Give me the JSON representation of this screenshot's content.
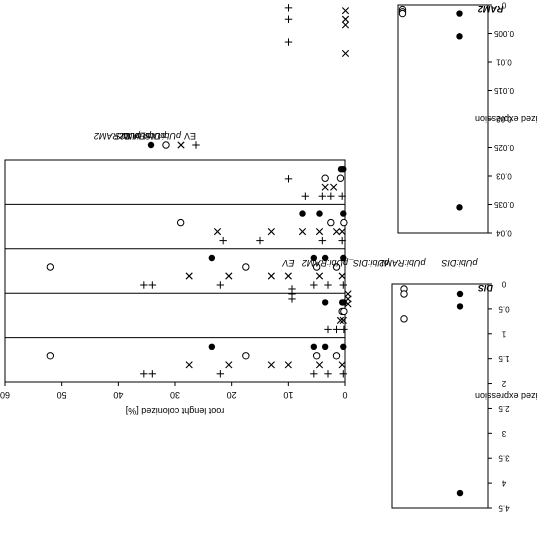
{
  "chart_data": [
    {
      "panel": "left",
      "type": "scatter",
      "ylabel": "root lenght colonized [%]",
      "ylim": [
        0,
        60
      ],
      "yticks": [
        0,
        10,
        20,
        30,
        40,
        50,
        60
      ],
      "grid": false,
      "legend_position": "above panels (rotated)",
      "series": [
        {
          "name": "pUbi:DIS",
          "marker": "filled-circle",
          "groups": [
            [
              0.3,
              3.5,
              5.5,
              23.5
            ],
            [
              0.5,
              3.5,
              0.2
            ],
            [
              0.3,
              3.5,
              5.5,
              23.5
            ],
            [
              0.3,
              4.5,
              7.5
            ],
            [
              0.3,
              0.7
            ]
          ]
        },
        {
          "name": "pUbi:RAM2",
          "marker": "open-circle",
          "groups": [
            [
              1.5,
              5.0,
              17.5,
              52.0
            ],
            [
              0.5,
              0.2
            ],
            [
              1.5,
              5.0,
              17.5,
              52.0
            ],
            [
              0.2,
              2.5,
              29.0
            ],
            [
              0.8,
              3.5
            ]
          ]
        },
        {
          "name": "pUbi:DIS_pUbi:RAM2",
          "marker": "x",
          "groups": [
            [
              0.5,
              4.5,
              10.0,
              13.0,
              20.5,
              27.5
            ],
            [
              0.3,
              0.8
            ],
            [
              0.5,
              4.5,
              10.0,
              13.0,
              20.5,
              27.5
            ],
            [
              0.5,
              1.5,
              4.5,
              7.5,
              13.0,
              22.5
            ],
            [
              2.0,
              3.5
            ]
          ]
        },
        {
          "name": "EV",
          "marker": "plus",
          "groups": [
            [
              0.3,
              3.0,
              5.5,
              22.0,
              34.0,
              35.5
            ],
            [
              0.2,
              1.5,
              3.0
            ],
            [
              0.3,
              3.0,
              5.5,
              22.0,
              34.0,
              35.5
            ],
            [
              0.5,
              4.0,
              15.0,
              21.5
            ],
            [
              0.5,
              2.5,
              4.0,
              7.0
            ]
          ]
        }
      ]
    },
    {
      "panel": "top-right",
      "type": "scatter",
      "title": "RAM2",
      "ylabel": "normalized expression",
      "ylim": [
        0,
        0.04
      ],
      "yticks": [
        0,
        0.005,
        0.01,
        0.015,
        0.02,
        0.025,
        0.03,
        0.035,
        0.04
      ],
      "categories": [
        "pUbi:DIS",
        "pUbi:RAM2",
        "pUbi:DIS_pUbi:RAM2",
        "EV"
      ],
      "series": [
        {
          "name": "pUbi:DIS",
          "marker": "filled-circle",
          "values": [
            0.0015,
            0.0055,
            0.0355
          ]
        },
        {
          "name": "pUbi:RAM2",
          "marker": "open-circle",
          "values": [
            0.0008,
            0.0012,
            0.0015
          ]
        },
        {
          "name": "pUbi:DIS_pUbi:RAM2",
          "marker": "x",
          "values": [
            0.001,
            0.0025,
            0.0035,
            0.0085
          ]
        },
        {
          "name": "EV",
          "marker": "plus",
          "values": [
            0.0005,
            0.0025,
            0.0065,
            0.0305
          ]
        }
      ]
    },
    {
      "panel": "bottom-right",
      "type": "scatter",
      "title": "DIS",
      "ylabel": "normalized expression",
      "ylim": [
        0,
        4.5
      ],
      "yticks": [
        0,
        0.5,
        1,
        1.5,
        2,
        2.5,
        3,
        3.5,
        4,
        4.5
      ],
      "categories": [
        "pUbi:DIS",
        "pUbi:RAM2",
        "pUbi:DIS_pUbi:RAM2",
        "EV"
      ],
      "series": [
        {
          "name": "pUbi:DIS",
          "marker": "filled-circle",
          "values": [
            0.2,
            0.45,
            4.2
          ]
        },
        {
          "name": "pUbi:RAM2",
          "marker": "open-circle",
          "values": [
            0.1,
            0.2,
            0.7
          ]
        },
        {
          "name": "pUbi:DIS_pUbi:RAM2",
          "marker": "x",
          "values": [
            0.2,
            0.3,
            0.4
          ]
        },
        {
          "name": "EV",
          "marker": "plus",
          "values": [
            0.1,
            0.2,
            0.3
          ]
        }
      ]
    }
  ]
}
